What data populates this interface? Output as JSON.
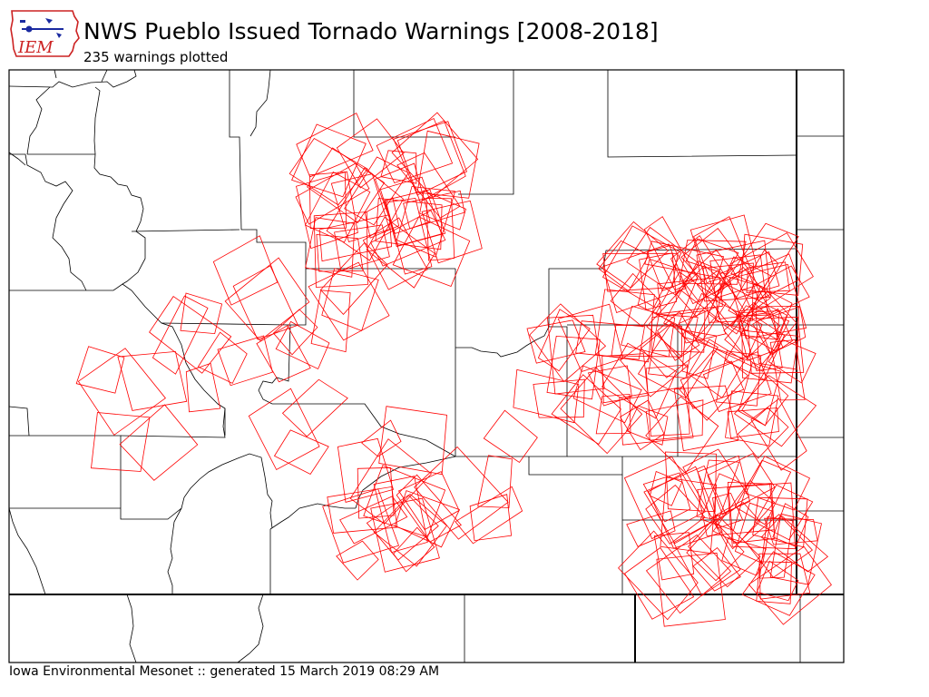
{
  "header": {
    "logo_text": "IEM",
    "title": "NWS Pueblo Issued Tornado Warnings [2008-2018]",
    "subtitle": "235 warnings plotted"
  },
  "footer": {
    "credit": "Iowa Environmental Mesonet :: generated 15 March 2019 08:29 AM"
  },
  "colors": {
    "warning_polygon": "#ff0000",
    "boundary": "#000000",
    "logo_red": "#cc2222",
    "logo_blue": "#1a2aa0",
    "background": "#ffffff"
  },
  "map": {
    "warning_count": 235,
    "layers": [
      "county-boundaries",
      "state-boundaries",
      "tornado-warning-polygons"
    ]
  }
}
